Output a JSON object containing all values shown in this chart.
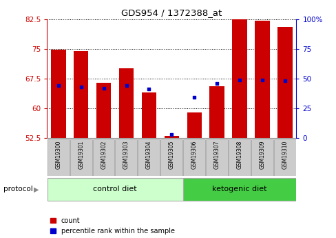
{
  "title": "GDS954 / 1372388_at",
  "samples": [
    "GSM19300",
    "GSM19301",
    "GSM19302",
    "GSM19303",
    "GSM19304",
    "GSM19305",
    "GSM19306",
    "GSM19307",
    "GSM19308",
    "GSM19309",
    "GSM19310"
  ],
  "count_values": [
    74.8,
    74.4,
    66.5,
    70.0,
    64.0,
    53.0,
    59.0,
    65.5,
    83.0,
    82.0,
    80.5
  ],
  "percentile_values": [
    44,
    43,
    42,
    44,
    41,
    3,
    34,
    46,
    49,
    49,
    48
  ],
  "ylim_left": [
    52.5,
    82.5
  ],
  "ylim_right": [
    0,
    100
  ],
  "yticks_left": [
    52.5,
    60.0,
    67.5,
    75.0,
    82.5
  ],
  "yticks_right": [
    0,
    25,
    50,
    75,
    100
  ],
  "ytick_labels_left": [
    "52.5",
    "60",
    "67.5",
    "75",
    "82.5"
  ],
  "ytick_labels_right": [
    "0",
    "25",
    "50",
    "75",
    "100%"
  ],
  "bar_color": "#cc0000",
  "dot_color": "#0000cc",
  "bar_bottom": 52.5,
  "bar_width": 0.65,
  "n_control": 6,
  "n_keto": 5,
  "control_label": "control diet",
  "ketogenic_label": "ketogenic diet",
  "protocol_label": "protocol",
  "legend_count_label": "count",
  "legend_percentile_label": "percentile rank within the sample",
  "bg_color_plot": "#ffffff",
  "bg_color_tick_labels": "#cccccc",
  "bg_color_control": "#ccffcc",
  "bg_color_ketogenic": "#44cc44",
  "left_tick_color": "#cc0000",
  "right_tick_color": "#0000cc"
}
